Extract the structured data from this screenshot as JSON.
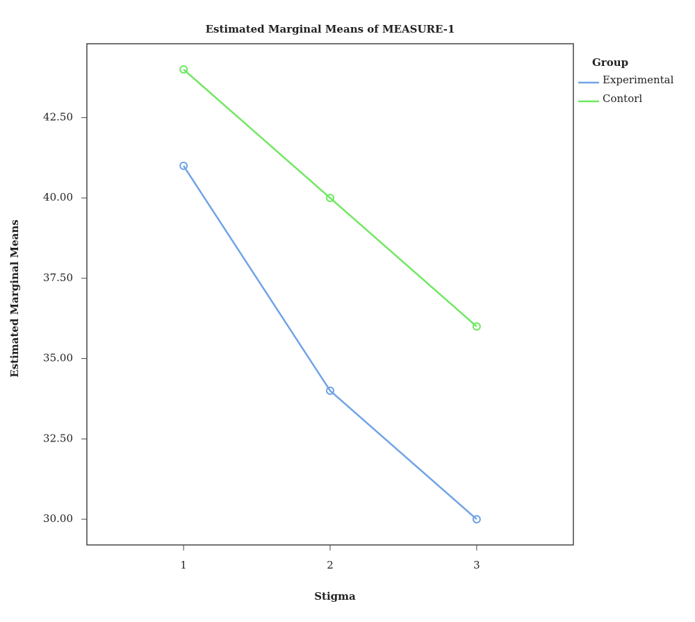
{
  "chart_data": {
    "type": "line",
    "title": "Estimated Marginal Means of MEASURE-1",
    "x_label": "Stigma",
    "y_label": "Estimated Marginal Means",
    "legend_title": "Group",
    "legend_position": "right",
    "x": [
      1,
      2,
      3
    ],
    "xlim": [
      0.34,
      3.66
    ],
    "xticks": [
      1,
      2,
      3
    ],
    "ylim": [
      29.2,
      44.8
    ],
    "yticks": [
      {
        "value": 30,
        "label": "30.00"
      },
      {
        "value": 32.5,
        "label": "32.50"
      },
      {
        "value": 35,
        "label": "35.00"
      },
      {
        "value": 37.5,
        "label": "37.50"
      },
      {
        "value": 40,
        "label": "40.00"
      },
      {
        "value": 42.5,
        "label": "42.50"
      }
    ],
    "grid": false,
    "series": [
      {
        "name": "Experimental",
        "color": "#6fa3e6",
        "values": [
          41,
          34,
          30
        ]
      },
      {
        "name": "Contorl",
        "color": "#6de85f",
        "values": [
          44,
          40,
          36
        ]
      }
    ]
  }
}
